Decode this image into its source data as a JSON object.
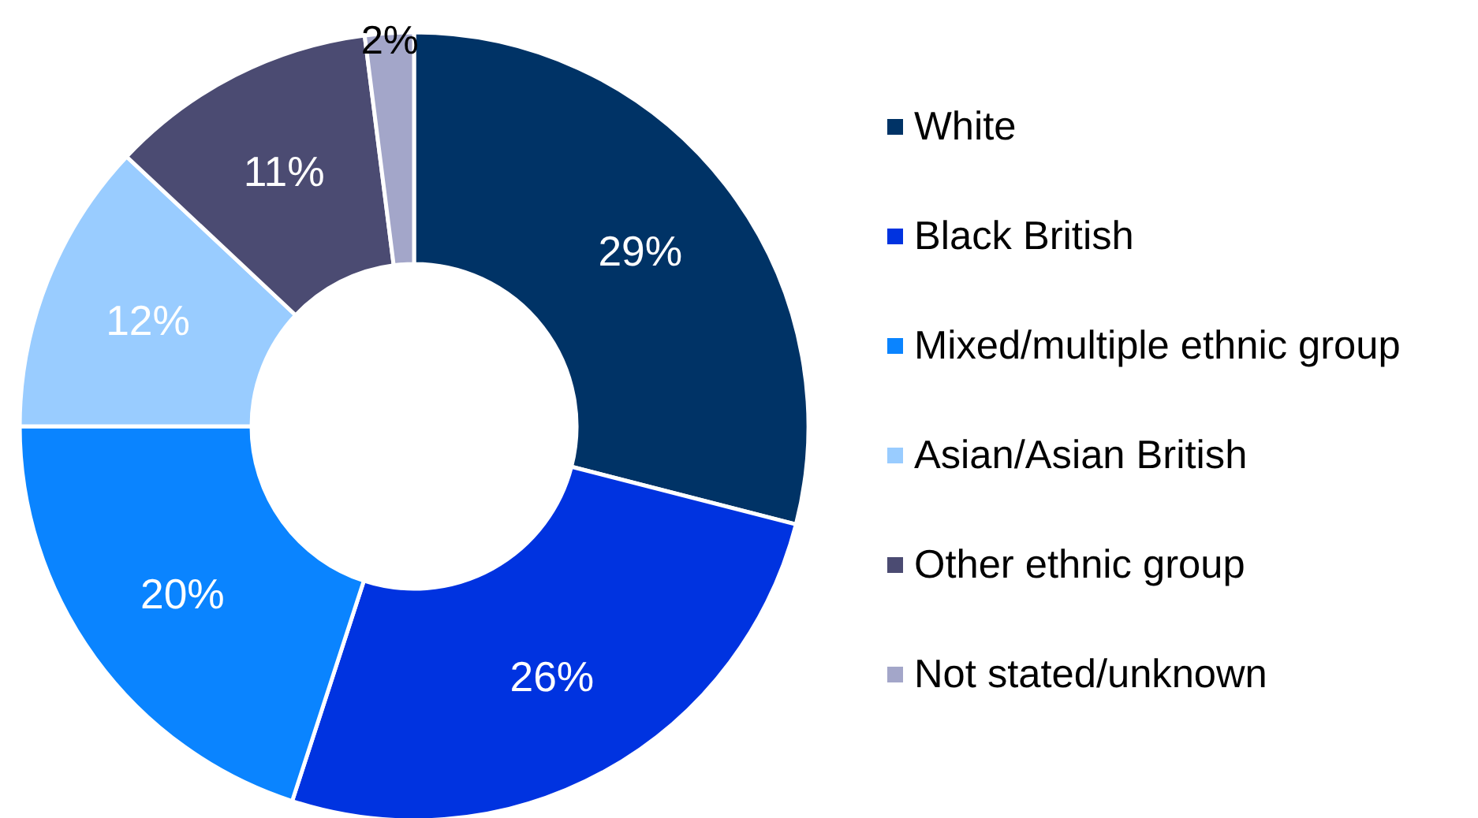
{
  "chart_data": {
    "type": "donut",
    "categories": [
      "White",
      "Black British",
      "Mixed/multiple ethnic group",
      "Asian/Asian British",
      "Other ethnic group",
      "Not stated/unknown"
    ],
    "values": [
      29,
      26,
      20,
      12,
      11,
      2
    ],
    "colors": [
      "#003366",
      "#0033e0",
      "#0a84ff",
      "#99ccff",
      "#4b4b72",
      "#a3a6c9"
    ],
    "value_labels": [
      "29%",
      "26%",
      "20%",
      "12%",
      "11%",
      "2%"
    ],
    "legend": "right"
  }
}
